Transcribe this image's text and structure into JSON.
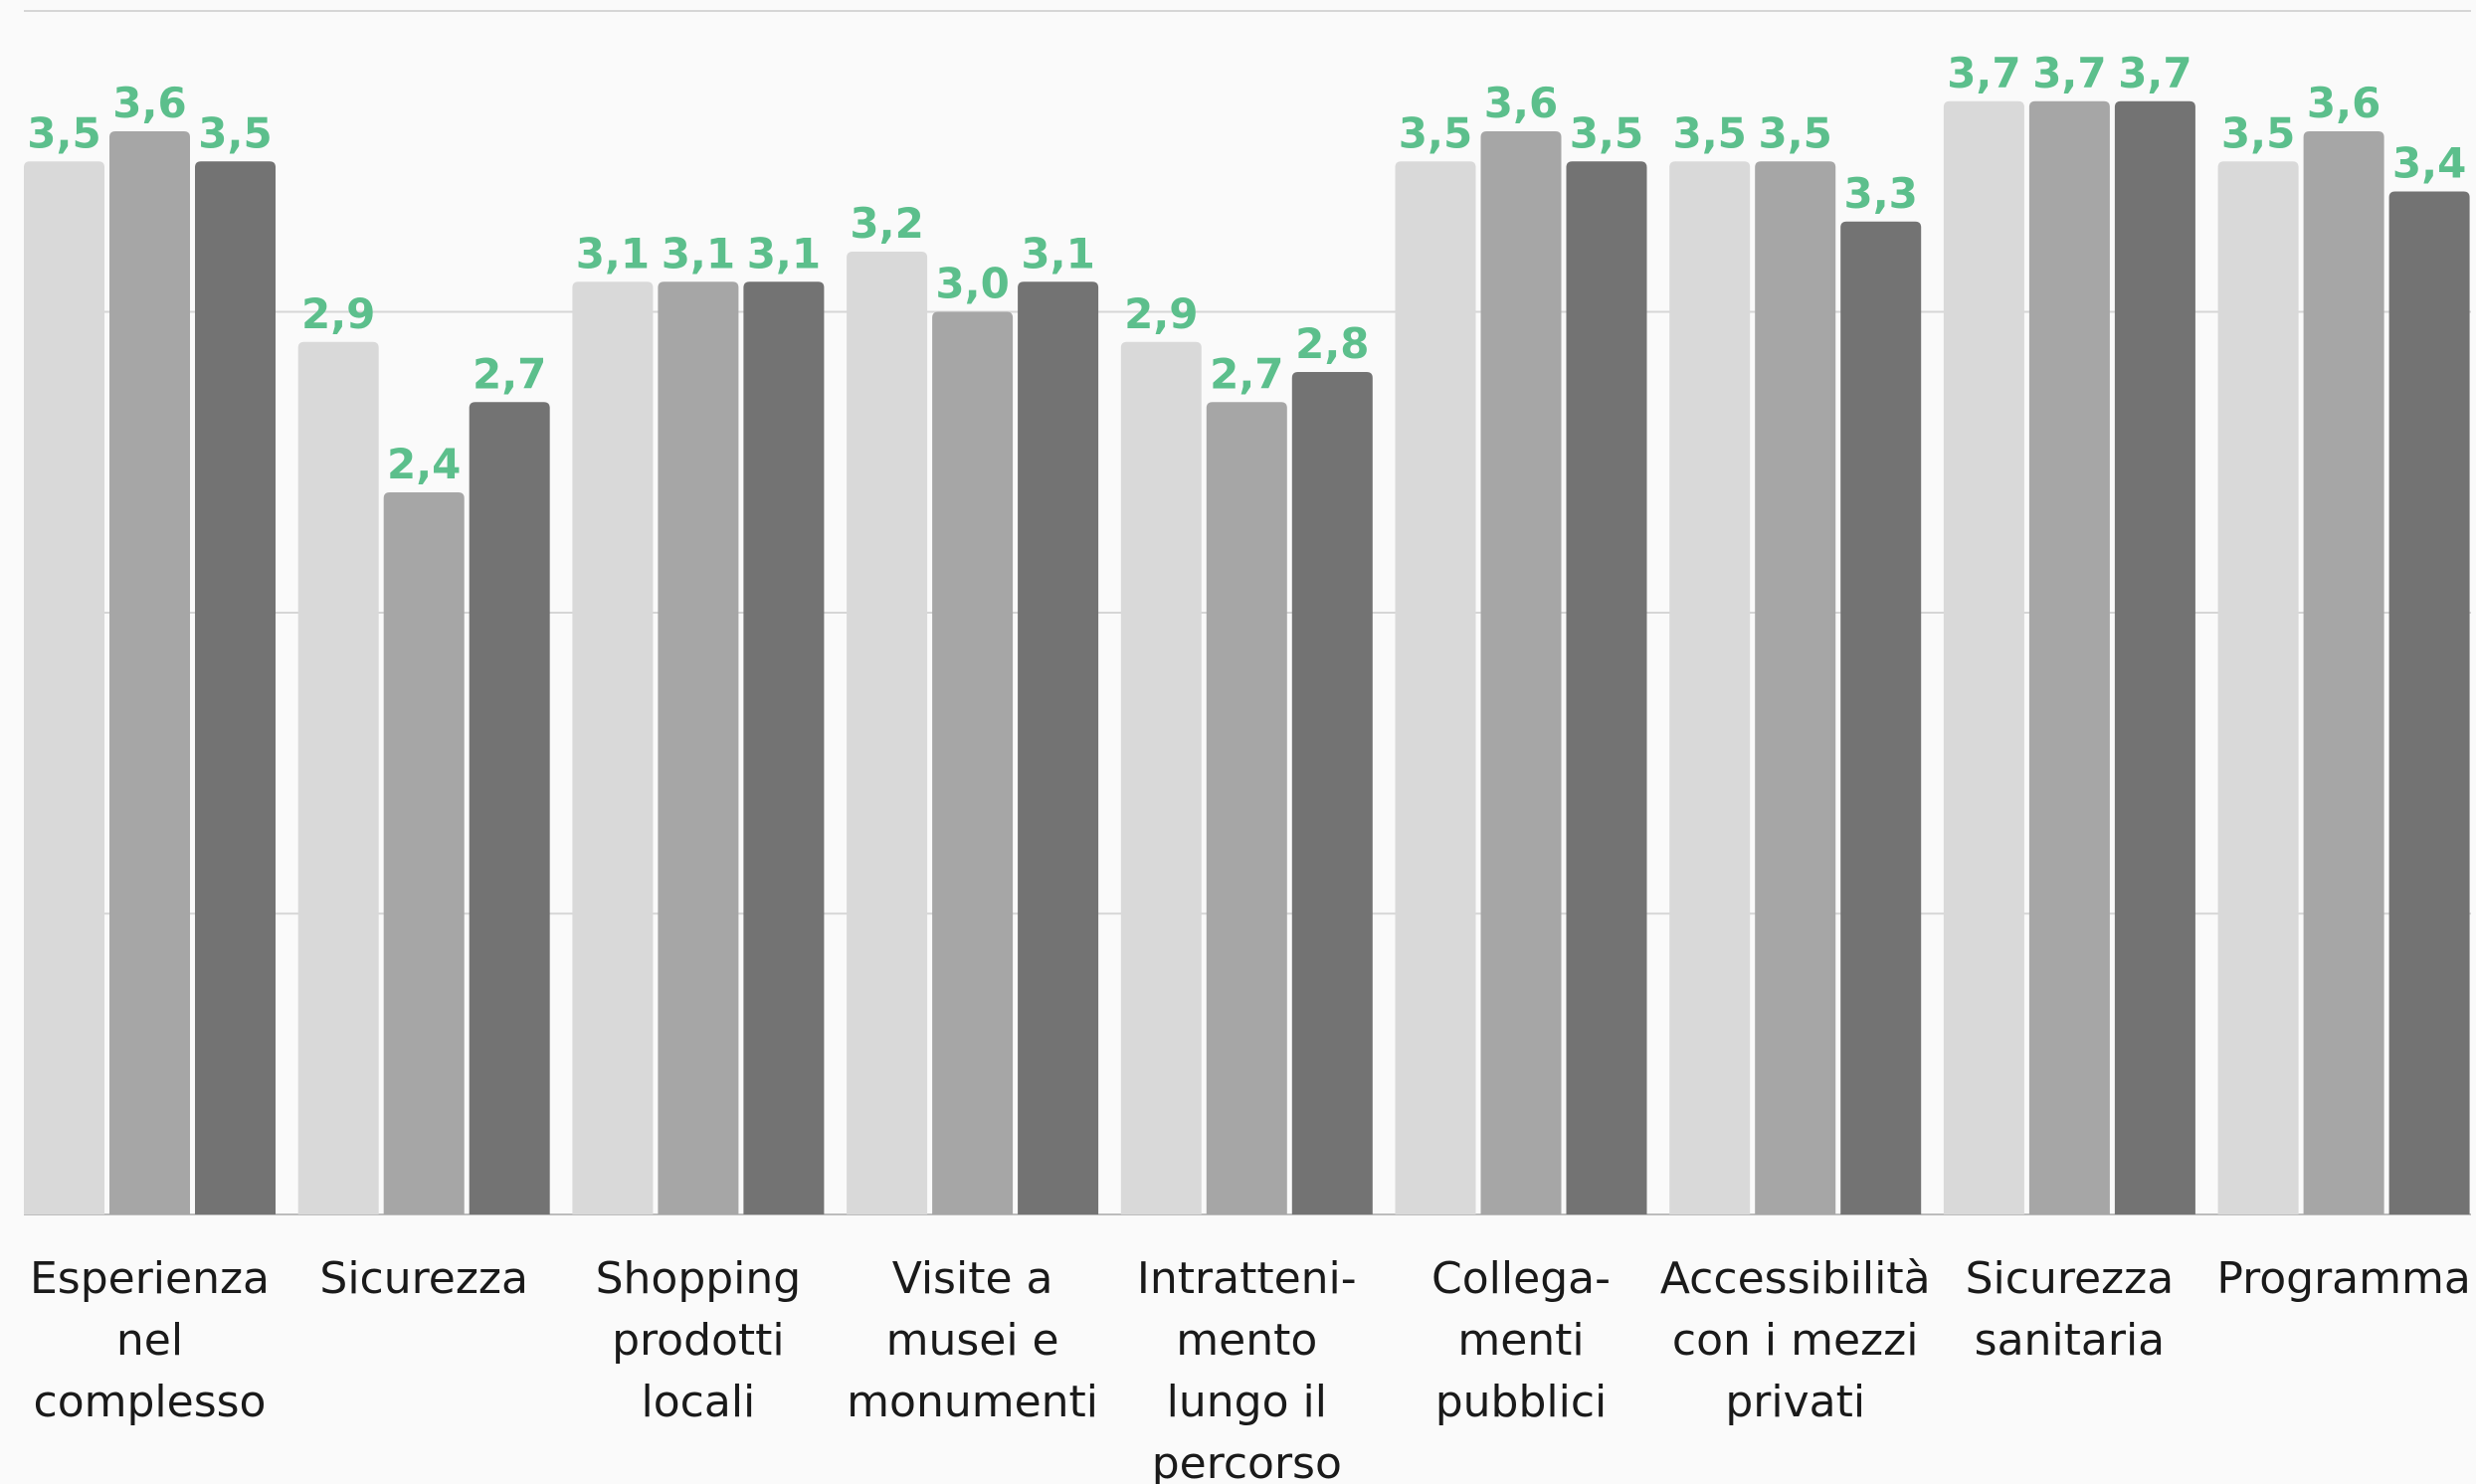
{
  "chart_data": {
    "type": "bar",
    "categories": [
      [
        "Esperienza",
        "nel",
        "complesso"
      ],
      [
        "Sicurezza"
      ],
      [
        "Shopping",
        "prodotti",
        "locali"
      ],
      [
        "Visite a",
        "musei e",
        "monumenti"
      ],
      [
        "Intratteni-",
        "mento",
        "lungo il",
        "percorso"
      ],
      [
        "Collega-",
        "menti",
        "pubblici"
      ],
      [
        "Accessibilità",
        "con i mezzi",
        "privati"
      ],
      [
        "Sicurezza",
        "sanitaria"
      ],
      [
        "Programma"
      ]
    ],
    "series": [
      {
        "color": "#d9d9d9",
        "values": [
          3.5,
          2.9,
          3.1,
          3.2,
          2.9,
          3.5,
          3.5,
          3.7,
          3.5
        ]
      },
      {
        "color": "#a6a6a6",
        "values": [
          3.6,
          2.4,
          3.1,
          3.0,
          2.7,
          3.6,
          3.5,
          3.7,
          3.6
        ]
      },
      {
        "color": "#737373",
        "values": [
          3.5,
          2.7,
          3.1,
          3.1,
          2.8,
          3.5,
          3.3,
          3.7,
          3.4
        ]
      }
    ],
    "value_labels": [
      [
        "3,5",
        "2,9",
        "3,1",
        "3,2",
        "2,9",
        "3,5",
        "3,5",
        "3,7",
        "3,5"
      ],
      [
        "3,6",
        "2,4",
        "3,1",
        "3,0",
        "2,7",
        "3,6",
        "3,5",
        "3,7",
        "3,6"
      ],
      [
        "3,5",
        "2,7",
        "3,1",
        "3,1",
        "2,8",
        "3,5",
        "3,3",
        "3,7",
        "3,4"
      ]
    ],
    "ylim": [
      0,
      4
    ],
    "gridlines": [
      1,
      2,
      3,
      4
    ],
    "grid": true,
    "label_color": "#5cbf8c",
    "legend": "none",
    "title": "",
    "xlabel": "",
    "ylabel": ""
  }
}
